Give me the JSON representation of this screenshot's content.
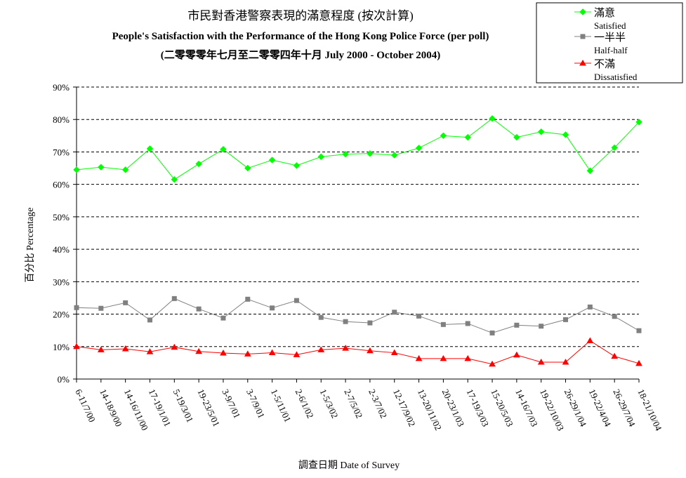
{
  "chart_data": {
    "type": "line",
    "title_lines": [
      "市民對香港警察表現的滿意程度 (按次計算)",
      "People's Satisfaction with the Performance of the Hong Kong Police Force (per poll)",
      "(二零零零年七月至二零零四年十月 July 2000 -  October 2004)"
    ],
    "xlabel": "調查日期 Date of Survey",
    "ylabel": "百分比 Percentage",
    "ylim": [
      0,
      90
    ],
    "ytick_step": 10,
    "yticks": [
      "0%",
      "10%",
      "20%",
      "30%",
      "40%",
      "50%",
      "60%",
      "70%",
      "80%",
      "90%"
    ],
    "grid": "horizontal-dashed",
    "legend_position": "top-right",
    "categories": [
      "6-11/7/00",
      "14-18/9/00",
      "14-16/11/00",
      "17-19/1/01",
      "5-19/3/01",
      "19-23/5/01",
      "3-9/7/01",
      "3-7/9/01",
      "1-5/11/01",
      "2-6/1/02",
      "1-5/3/02",
      "2-7/5/02",
      "2-3/7/02",
      "12-17/9/02",
      "13-20/11/02",
      "20-23/1/03",
      "17-19/3/03",
      "15-20/5/03",
      "14-16/7/03",
      "19-22/10/03",
      "26-29/1/04",
      "19-22/4/04",
      "26-29/7/04",
      "18-21/10/04"
    ],
    "series": [
      {
        "name": "滿意",
        "name_en": "Satisfied",
        "color": "#00ff00",
        "marker": "diamond",
        "values": [
          64.5,
          65.3,
          64.5,
          71.0,
          61.5,
          66.3,
          70.8,
          65.0,
          67.5,
          65.8,
          68.5,
          69.3,
          69.5,
          69.0,
          71.2,
          75.0,
          74.5,
          80.3,
          74.5,
          76.2,
          75.3,
          64.2,
          71.3,
          79.2
        ]
      },
      {
        "name": "一半半",
        "name_en": "Half-half",
        "color": "#808080",
        "marker": "square",
        "values": [
          22.0,
          21.8,
          23.5,
          18.2,
          24.8,
          21.6,
          18.8,
          24.6,
          21.9,
          24.2,
          19.0,
          17.7,
          17.3,
          20.6,
          19.4,
          16.8,
          17.1,
          14.2,
          16.6,
          16.3,
          18.3,
          22.2,
          19.3,
          14.9
        ]
      },
      {
        "name": "不滿",
        "name_en": "Dissatisfied",
        "color": "#ff0000",
        "marker": "triangle",
        "values": [
          10.0,
          9.0,
          9.3,
          8.4,
          9.8,
          8.5,
          8.0,
          7.7,
          8.1,
          7.5,
          9.0,
          9.5,
          8.7,
          8.1,
          6.3,
          6.3,
          6.3,
          4.6,
          7.4,
          5.2,
          5.2,
          11.8,
          7.0,
          4.8
        ]
      }
    ]
  }
}
